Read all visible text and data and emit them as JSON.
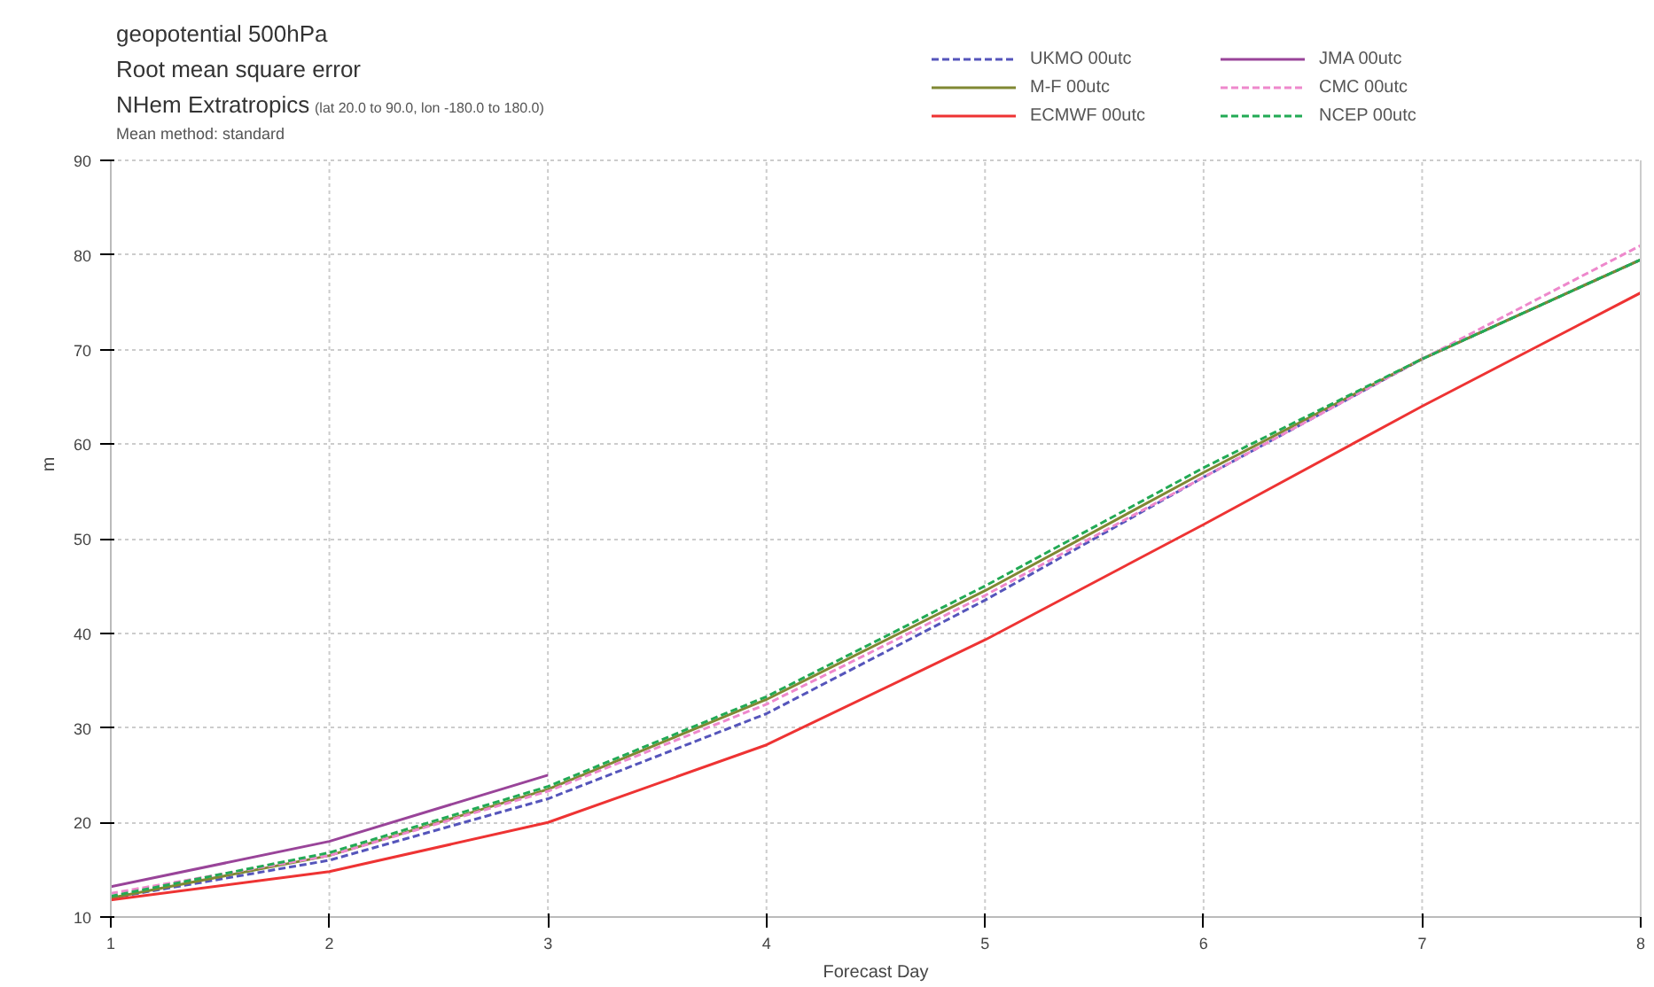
{
  "chart_data": {
    "type": "line",
    "title": "geopotential 500hPa",
    "subtitle": "Root mean square error",
    "annotations": [
      "NHem Extratropics",
      "(lat 20.0 to 90.0, lon -180.0 to 180.0)",
      "Mean method: standard"
    ],
    "xlabel": "Forecast Day",
    "ylabel": "m",
    "x": [
      1,
      2,
      3,
      4,
      5,
      6,
      7,
      8
    ],
    "xlim": [
      1,
      8
    ],
    "xticks": [
      1,
      2,
      3,
      4,
      5,
      6,
      7,
      8
    ],
    "ylim": [
      10,
      90
    ],
    "yticks": [
      10,
      20,
      30,
      40,
      50,
      60,
      70,
      80,
      90
    ],
    "grid": true,
    "legend": "top right",
    "marker": "none",
    "series": [
      {
        "name": "UKMO 00utc",
        "color": "#5555bb",
        "line_style": "dashed",
        "values": [
          12,
          16,
          22.5,
          31.5,
          43.5,
          56.5,
          69,
          79.5
        ]
      },
      {
        "name": "JMA 00utc",
        "color": "#994499",
        "line_style": "solid",
        "values": [
          13.2,
          18,
          25,
          null,
          null,
          null,
          null,
          null
        ]
      },
      {
        "name": "M-F 00utc",
        "color": "#808833",
        "line_style": "solid",
        "values": [
          12,
          16.5,
          23.5,
          33,
          44.5,
          57,
          69,
          79.5
        ]
      },
      {
        "name": "CMC 00utc",
        "color": "#ee88cc",
        "line_style": "dashed",
        "values": [
          12.5,
          16.5,
          23.3,
          32.5,
          44,
          56.5,
          69,
          81
        ]
      },
      {
        "name": "ECMWF 00utc",
        "color": "#ee3333",
        "line_style": "solid",
        "values": [
          11.8,
          14.8,
          20,
          28.2,
          39.3,
          51.5,
          64,
          76
        ]
      },
      {
        "name": "NCEP 00utc",
        "color": "#22aa55",
        "line_style": "dashed",
        "values": [
          12.2,
          16.8,
          23.8,
          33.3,
          45,
          57.5,
          69,
          79.5
        ]
      }
    ]
  }
}
